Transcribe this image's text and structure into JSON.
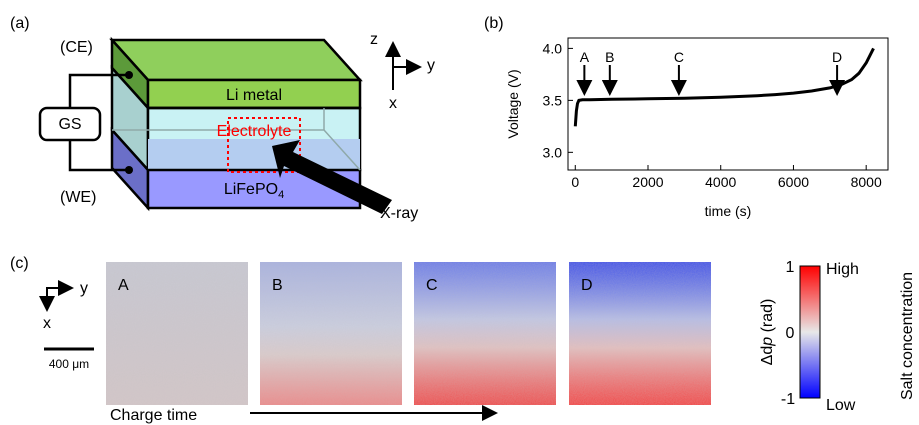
{
  "panel_a": {
    "label": "(a)",
    "ce": "(CE)",
    "we": "(WE)",
    "gs": "GS",
    "layers": {
      "top": "Li metal",
      "middle": "Electrolyte",
      "bottom": {
        "text": "LiFePO",
        "subscript": "4"
      }
    },
    "axes": {
      "z": "z",
      "y": "y",
      "x": "x"
    },
    "beam": "X-ray"
  },
  "panel_b": {
    "label": "(b)"
  },
  "chart_data": {
    "type": "line",
    "xlabel": "time (s)",
    "ylabel": "Voltage (V)",
    "color": "#000000",
    "x": [
      0,
      30,
      60,
      100,
      200,
      400,
      1000,
      2000,
      3000,
      4000,
      5000,
      5500,
      6000,
      6500,
      7000,
      7300,
      7600,
      7800,
      8000,
      8200
    ],
    "values": [
      3.25,
      3.4,
      3.47,
      3.5,
      3.505,
      3.505,
      3.51,
      3.515,
      3.52,
      3.53,
      3.545,
      3.555,
      3.57,
      3.59,
      3.62,
      3.65,
      3.7,
      3.76,
      3.86,
      4.0
    ],
    "xlim": [
      -200,
      8600
    ],
    "ylim": [
      2.83,
      4.1
    ],
    "xticks": [
      0,
      2000,
      4000,
      6000,
      8000
    ],
    "yticks": [
      {
        "value": 3,
        "label": "3.0"
      },
      {
        "value": 3.5,
        "label": "3.5"
      },
      {
        "value": 4,
        "label": "4.0"
      }
    ],
    "annotations": [
      {
        "text": "A",
        "x": 250
      },
      {
        "text": "B",
        "x": 950
      },
      {
        "text": "C",
        "x": 2850
      },
      {
        "text": "D",
        "x": 7200
      }
    ]
  },
  "panel_c": {
    "label": "(c)",
    "axes": {
      "y": "y",
      "x": "x"
    },
    "scale_bar": "400 μm",
    "time_arrow": "Charge time",
    "images": [
      "A",
      "B",
      "C",
      "D"
    ],
    "colorbar": {
      "label_prefix": "Δd",
      "label_var": "p",
      "label_suffix": " (rad)",
      "ticks": [
        "1",
        "0",
        "-1"
      ],
      "high": "High",
      "low": "Low",
      "quantity": "Salt concentration"
    }
  }
}
